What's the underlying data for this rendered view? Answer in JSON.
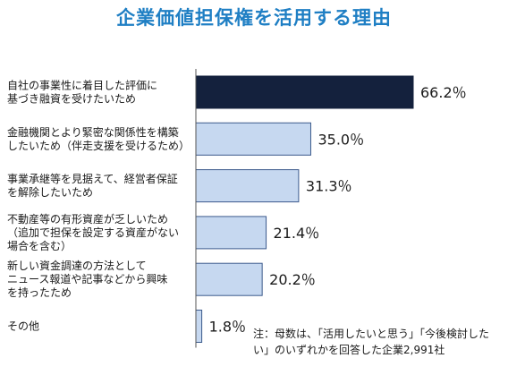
{
  "title": "企業価値担保権を活用する理由",
  "note": "注：母数は、「活用したいと思う」「今後検討したい」のいずれかを回答した企業2,991社",
  "colors": {
    "highlight_bar": "#14213d",
    "bar": "#c6d8f0",
    "bar_border": "#3c5a8c",
    "title": "#1f7fc4"
  },
  "chart_data": {
    "type": "bar",
    "orientation": "horizontal",
    "title": "企業価値担保権を活用する理由",
    "xlabel": "",
    "ylabel": "",
    "unit": "%",
    "xlim": [
      0,
      70
    ],
    "grid": false,
    "legend": "none",
    "categories": [
      [
        "自社の事業性に着目した評価に",
        "基づき融資を受けたいため"
      ],
      [
        "金融機関とより緊密な関係性を構築",
        "したいため（伴走支援を受けるため）"
      ],
      [
        "事業承継等を見据えて、経営者保証",
        "を解除したいため"
      ],
      [
        "不動産等の有形資産が乏しいため",
        "（追加で担保を設定する資産がない",
        "場合を含む）"
      ],
      [
        "新しい資金調達の方法として",
        "ニュース報道や記事などから興味",
        "を持ったため"
      ],
      [
        "その他"
      ]
    ],
    "values": [
      66.2,
      35.0,
      31.3,
      21.4,
      20.2,
      1.8
    ],
    "value_labels": [
      "66.2％",
      "35.0％",
      "31.3％",
      "21.4％",
      "20.2％",
      "1.8％"
    ],
    "highlight_index": 0
  }
}
